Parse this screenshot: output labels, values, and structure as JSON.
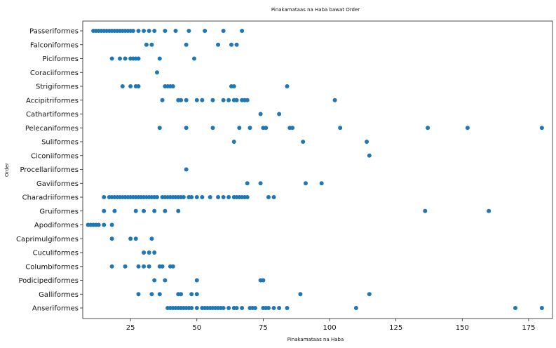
{
  "chart_data": {
    "type": "scatter",
    "title": "Pinakamataas na Haba bawat Order",
    "xlabel": "Pinakamataas na Haba",
    "ylabel": "Order",
    "xlim": [
      7,
      184
    ],
    "xticks": [
      25,
      50,
      75,
      100,
      125,
      150,
      175
    ],
    "grid": false,
    "color": "#1f77b4",
    "categories": [
      "Passeriformes",
      "Falconiformes",
      "Piciformes",
      "Coraciiformes",
      "Strigiformes",
      "Accipitriformes",
      "Cathartiformes",
      "Pelecaniformes",
      "Suliformes",
      "Ciconiiformes",
      "Procellariiformes",
      "Gaviiformes",
      "Charadriiformes",
      "Gruiformes",
      "Apodiformes",
      "Caprimulgiformes",
      "Cuculiformes",
      "Columbiformes",
      "Podicipediformes",
      "Galliformes",
      "Anseriformes"
    ],
    "series": [
      {
        "category": "Passeriformes",
        "x": [
          11,
          12,
          13,
          14,
          15,
          16,
          17,
          18,
          19,
          20,
          21,
          22,
          23,
          24,
          25,
          26,
          28,
          30,
          32,
          34,
          38,
          42,
          47,
          53,
          60,
          67
        ]
      },
      {
        "category": "Falconiformes",
        "x": [
          31,
          33,
          46,
          58,
          63,
          65
        ]
      },
      {
        "category": "Piciformes",
        "x": [
          18,
          21,
          23,
          25,
          26,
          27,
          28,
          36,
          49
        ]
      },
      {
        "category": "Coraciiformes",
        "x": [
          35
        ]
      },
      {
        "category": "Strigiformes",
        "x": [
          22,
          25,
          27,
          28,
          38,
          39,
          40,
          41,
          63,
          64,
          84
        ]
      },
      {
        "category": "Accipitriformes",
        "x": [
          37,
          43,
          44,
          46,
          50,
          52,
          56,
          60,
          62,
          64,
          65,
          67,
          68,
          69,
          102
        ]
      },
      {
        "category": "Cathartiformes",
        "x": [
          74,
          81
        ]
      },
      {
        "category": "Pelecaniformes",
        "x": [
          36,
          46,
          56,
          66,
          70,
          75,
          76,
          85,
          86,
          104,
          137,
          152,
          180
        ]
      },
      {
        "category": "Suliformes",
        "x": [
          64,
          90,
          114
        ]
      },
      {
        "category": "Ciconiiformes",
        "x": [
          115
        ]
      },
      {
        "category": "Procellariiformes",
        "x": [
          46
        ]
      },
      {
        "category": "Gaviiformes",
        "x": [
          69,
          74,
          91,
          97
        ]
      },
      {
        "category": "Charadriiformes",
        "x": [
          15,
          17,
          18,
          19,
          20,
          21,
          22,
          23,
          24,
          25,
          26,
          27,
          28,
          29,
          30,
          31,
          32,
          33,
          34,
          35,
          37,
          38,
          39,
          40,
          41,
          42,
          43,
          44,
          45,
          47,
          48,
          50,
          52,
          55,
          58,
          60,
          62,
          64,
          65,
          66,
          67,
          68,
          69,
          77,
          79
        ]
      },
      {
        "category": "Gruiformes",
        "x": [
          15,
          19,
          27,
          30,
          34,
          38,
          43,
          136,
          160
        ]
      },
      {
        "category": "Apodiformes",
        "x": [
          9,
          10,
          11,
          12,
          13,
          15,
          18
        ]
      },
      {
        "category": "Caprimulgiformes",
        "x": [
          18,
          25,
          27,
          33
        ]
      },
      {
        "category": "Cuculiformes",
        "x": [
          30,
          32,
          34
        ]
      },
      {
        "category": "Columbiformes",
        "x": [
          18,
          23,
          28,
          30,
          32,
          36,
          37,
          40,
          41
        ]
      },
      {
        "category": "Podicipediformes",
        "x": [
          34,
          38,
          50,
          74,
          75
        ]
      },
      {
        "category": "Galliformes",
        "x": [
          28,
          33,
          36,
          43,
          44,
          48,
          50,
          89,
          115
        ]
      },
      {
        "category": "Anseriformes",
        "x": [
          39,
          40,
          41,
          42,
          43,
          44,
          45,
          46,
          47,
          48,
          50,
          52,
          53,
          54,
          55,
          56,
          57,
          58,
          59,
          60,
          62,
          64,
          65,
          67,
          70,
          71,
          72,
          75,
          76,
          77,
          79,
          81,
          84,
          110,
          170,
          180
        ]
      }
    ]
  }
}
